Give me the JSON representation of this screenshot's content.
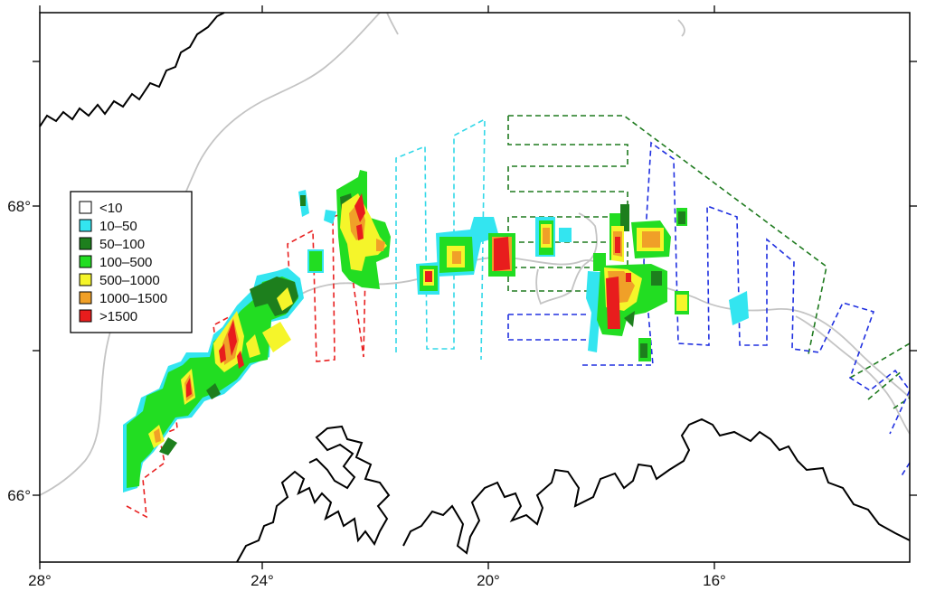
{
  "map": {
    "x_ticks": [
      "28°",
      "24°",
      "20°",
      "16°"
    ],
    "y_ticks": [
      "68°",
      "66°"
    ],
    "legend": [
      {
        "label": "<10",
        "color": "#ffffff"
      },
      {
        "label": "10–50",
        "color": "#33e5f0"
      },
      {
        "label": "50–100",
        "color": "#1d7f1d"
      },
      {
        "label": "100–500",
        "color": "#22dd22"
      },
      {
        "label": "500–1000",
        "color": "#f5f52a"
      },
      {
        "label": "1000–1500",
        "color": "#f0a028"
      },
      {
        "label": ">1500",
        "color": "#e81d1d"
      }
    ],
    "colors": {
      "coastline": "#000000",
      "isobath": "#c2c2c2",
      "transect_red": "#e82020",
      "transect_cyan": "#33d8e8",
      "transect_green": "#1e7a1e",
      "transect_blue": "#2030e0"
    }
  }
}
